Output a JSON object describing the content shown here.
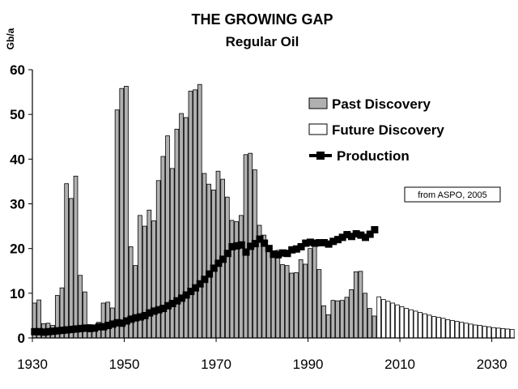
{
  "chart_data": {
    "type": "bar",
    "title": "THE GROWING GAP",
    "subtitle": "Regular Oil",
    "ylabel": "Gb/a",
    "xlabel": "",
    "ylim": [
      0,
      60
    ],
    "xlim": [
      1930,
      2035
    ],
    "yticks": [
      "0",
      "10",
      "20",
      "30",
      "40",
      "50",
      "60"
    ],
    "xticks": [
      "1930",
      "1950",
      "1970",
      "1990",
      "2010",
      "2030"
    ],
    "grid": false,
    "legend_position": "top-right",
    "source_note": "from ASPO, 2005",
    "series": [
      {
        "name": "Past Discovery",
        "style": "bar",
        "color": "#b0b0b0",
        "x": [
          1930,
          1931,
          1932,
          1933,
          1934,
          1935,
          1936,
          1937,
          1938,
          1939,
          1940,
          1941,
          1942,
          1943,
          1944,
          1945,
          1946,
          1947,
          1948,
          1949,
          1950,
          1951,
          1952,
          1953,
          1954,
          1955,
          1956,
          1957,
          1958,
          1959,
          1960,
          1961,
          1962,
          1963,
          1964,
          1965,
          1966,
          1967,
          1968,
          1969,
          1970,
          1971,
          1972,
          1973,
          1974,
          1975,
          1976,
          1977,
          1978,
          1979,
          1980,
          1981,
          1982,
          1983,
          1984,
          1985,
          1986,
          1987,
          1988,
          1989,
          1990,
          1991,
          1992,
          1993,
          1994,
          1995,
          1996,
          1997,
          1998,
          1999,
          2000,
          2001,
          2002,
          2003,
          2004
        ],
        "values": [
          7.8,
          8.5,
          3.2,
          3.3,
          2.8,
          9.5,
          11.2,
          34.5,
          31.2,
          36.2,
          14.0,
          10.3,
          3.0,
          2.9,
          3.5,
          7.8,
          8.0,
          6.7,
          51.0,
          55.8,
          56.3,
          20.4,
          16.2,
          27.4,
          25.0,
          28.6,
          26.2,
          35.2,
          40.6,
          45.2,
          37.9,
          46.7,
          50.2,
          49.3,
          55.2,
          55.5,
          56.7,
          36.8,
          34.4,
          33.1,
          37.3,
          35.5,
          31.5,
          26.3,
          26.0,
          27.4,
          41.0,
          41.3,
          37.6,
          25.2,
          23.0,
          20.6,
          19.5,
          19.6,
          16.4,
          16.2,
          14.5,
          14.6,
          17.5,
          16.5,
          20.0,
          21.7,
          15.3,
          7.2,
          5.2,
          8.4,
          8.3,
          8.4,
          9.1,
          10.8,
          14.8,
          14.9,
          10.0,
          6.6,
          4.9
        ]
      },
      {
        "name": "Future Discovery",
        "style": "bar",
        "color": "#ffffff",
        "x": [
          2005,
          2006,
          2007,
          2008,
          2009,
          2010,
          2011,
          2012,
          2013,
          2014,
          2015,
          2016,
          2017,
          2018,
          2019,
          2020,
          2021,
          2022,
          2023,
          2024,
          2025,
          2026,
          2027,
          2028,
          2029,
          2030,
          2031,
          2032,
          2033,
          2034
        ],
        "values": [
          9.2,
          8.6,
          8.2,
          7.8,
          7.4,
          7.0,
          6.6,
          6.3,
          6.0,
          5.7,
          5.4,
          5.1,
          4.8,
          4.6,
          4.4,
          4.1,
          3.9,
          3.7,
          3.5,
          3.3,
          3.1,
          2.9,
          2.8,
          2.6,
          2.5,
          2.3,
          2.2,
          2.1,
          2.0,
          1.9
        ]
      },
      {
        "name": "Production",
        "style": "line-markers",
        "color": "#000000",
        "x": [
          1930,
          1931,
          1932,
          1933,
          1934,
          1935,
          1936,
          1937,
          1938,
          1939,
          1940,
          1941,
          1942,
          1943,
          1944,
          1945,
          1946,
          1947,
          1948,
          1949,
          1950,
          1951,
          1952,
          1953,
          1954,
          1955,
          1956,
          1957,
          1958,
          1959,
          1960,
          1961,
          1962,
          1963,
          1964,
          1965,
          1966,
          1967,
          1968,
          1969,
          1970,
          1971,
          1972,
          1973,
          1974,
          1975,
          1976,
          1977,
          1978,
          1979,
          1980,
          1981,
          1982,
          1983,
          1984,
          1985,
          1986,
          1987,
          1988,
          1989,
          1990,
          1991,
          1992,
          1993,
          1994,
          1995,
          1996,
          1997,
          1998,
          1999,
          2000,
          2001,
          2002,
          2003,
          2004
        ],
        "values": [
          1.4,
          1.4,
          1.3,
          1.4,
          1.5,
          1.6,
          1.7,
          1.8,
          1.9,
          2.0,
          2.1,
          2.2,
          2.1,
          2.2,
          2.5,
          2.5,
          2.8,
          3.1,
          3.4,
          3.3,
          3.8,
          4.2,
          4.5,
          4.7,
          5.0,
          5.6,
          6.0,
          6.3,
          6.6,
          7.2,
          7.7,
          8.3,
          8.9,
          9.6,
          10.4,
          11.2,
          12.1,
          13.1,
          14.3,
          15.6,
          16.7,
          17.6,
          18.9,
          20.4,
          20.6,
          20.8,
          19.2,
          20.5,
          21.1,
          22.1,
          21.2,
          20.0,
          18.7,
          18.6,
          19.0,
          18.9,
          19.7,
          19.9,
          20.4,
          21.2,
          21.4,
          21.2,
          21.3,
          21.3,
          21.0,
          21.6,
          22.0,
          22.5,
          23.1,
          22.7,
          23.3,
          23.0,
          22.5,
          23.2,
          24.2
        ]
      }
    ]
  }
}
